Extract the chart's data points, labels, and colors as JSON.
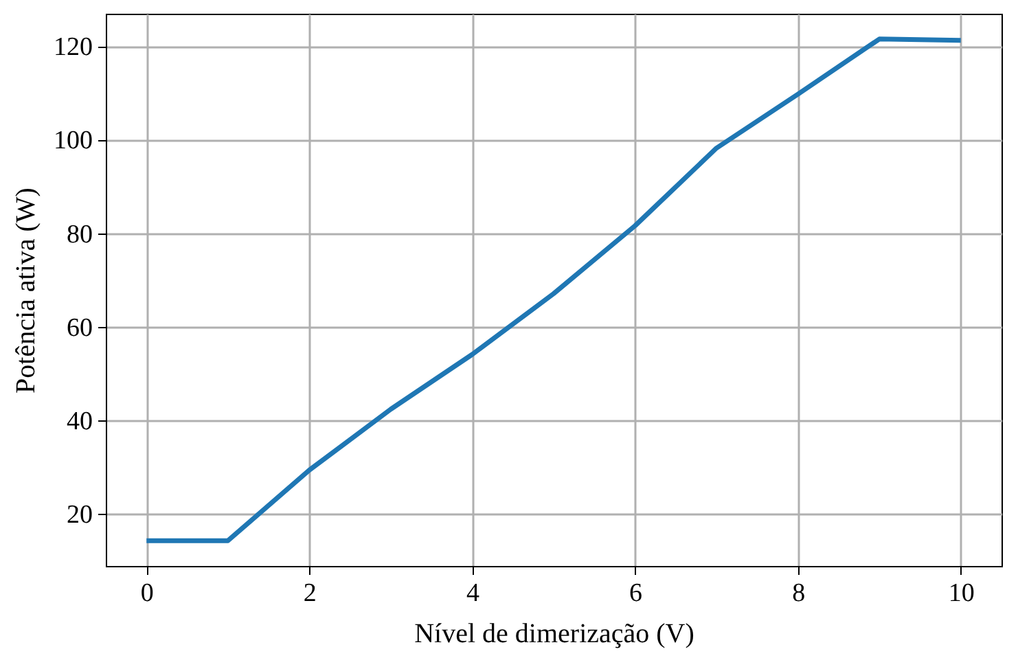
{
  "chart_data": {
    "type": "line",
    "xlabel": "Nível de dimerização (V)",
    "ylabel": "Potência ativa (W)",
    "x": [
      0,
      1,
      2,
      3,
      4,
      5,
      6,
      7,
      8,
      9,
      10
    ],
    "series": [
      {
        "color": "#1f77b4",
        "values": [
          14.3,
          14.3,
          29.4,
          42.4,
          54.1,
          67.1,
          81.6,
          98.2,
          109.7,
          121.5,
          121.2
        ]
      }
    ],
    "xlim": [
      -0.5,
      10.5
    ],
    "xticks": [
      0,
      2,
      4,
      6,
      8,
      10
    ],
    "ylim": [
      8.9,
      126.9
    ],
    "yticks": [
      20,
      40,
      60,
      80,
      100,
      120
    ],
    "grid": true,
    "line_style": "solid",
    "marker": "none"
  }
}
